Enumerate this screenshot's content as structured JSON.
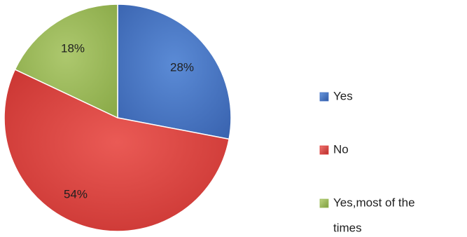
{
  "chart_data": {
    "type": "pie",
    "categories": [
      "Yes",
      "No",
      "Yes,most of the times"
    ],
    "values": [
      28,
      54,
      18
    ],
    "data_labels": [
      "28%",
      "54%",
      "18%"
    ],
    "colors": [
      "#4472C4",
      "#E0403C",
      "#9BBB59"
    ],
    "legend": {
      "position": "right",
      "entries": [
        {
          "label_lines": [
            "Yes"
          ]
        },
        {
          "label_lines": [
            "No"
          ]
        },
        {
          "label_lines": [
            "Yes,most of the",
            "times"
          ]
        }
      ]
    },
    "title": ""
  }
}
